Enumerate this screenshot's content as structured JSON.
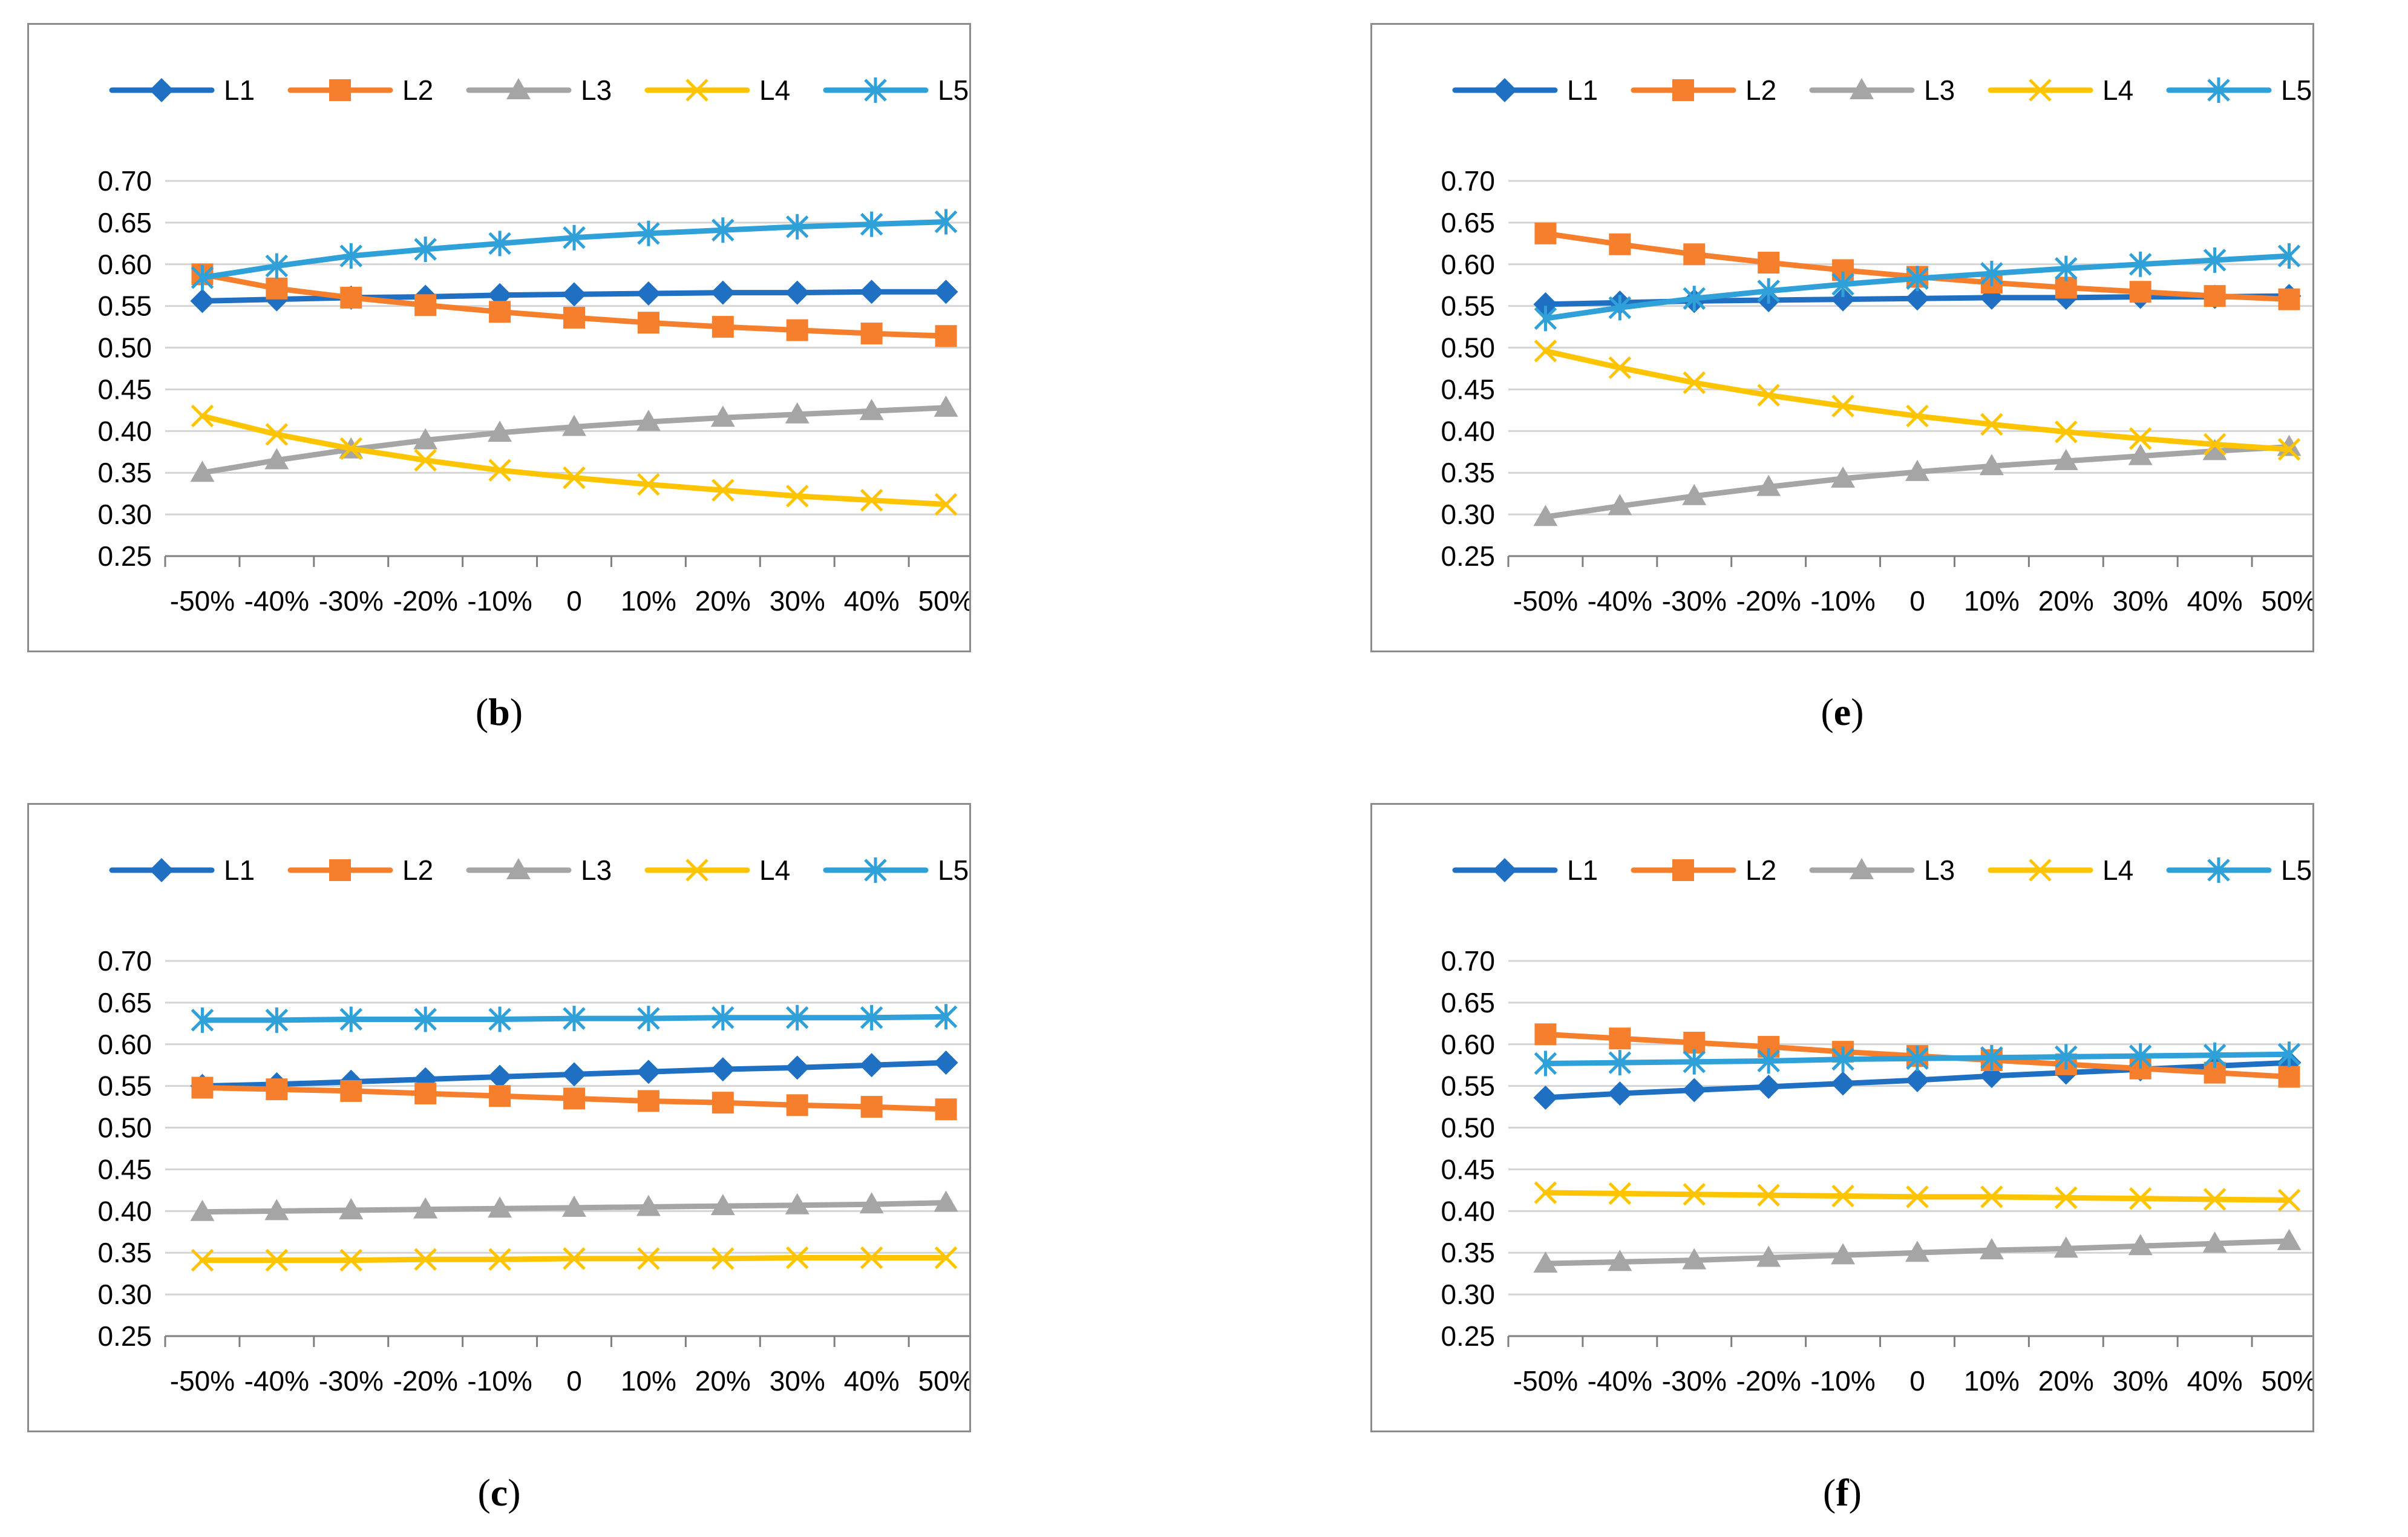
{
  "colors": {
    "L1": "#1f6fc2",
    "L2": "#f57f2c",
    "L3": "#a5a5a5",
    "L4": "#ffc400",
    "L5": "#2fa0d8",
    "grid": "#d4d4d4",
    "axis": "#7f7f7f"
  },
  "chart_data": [
    {
      "id": "b",
      "type": "line",
      "caption": "b",
      "categories": [
        "-50%",
        "-40%",
        "-30%",
        "-20%",
        "-10%",
        "0",
        "10%",
        "20%",
        "30%",
        "40%",
        "50%"
      ],
      "ylim": [
        0.25,
        0.7
      ],
      "yticks": [
        "0.70",
        "0.65",
        "0.60",
        "0.55",
        "0.50",
        "0.45",
        "0.40",
        "0.35",
        "0.30",
        "0.25"
      ],
      "legend": "top",
      "series": [
        {
          "name": "L1",
          "marker": "diamond",
          "values": [
            0.556,
            0.558,
            0.56,
            0.561,
            0.563,
            0.564,
            0.565,
            0.566,
            0.566,
            0.567,
            0.567
          ]
        },
        {
          "name": "L2",
          "marker": "square",
          "values": [
            0.588,
            0.571,
            0.56,
            0.551,
            0.543,
            0.536,
            0.53,
            0.525,
            0.521,
            0.517,
            0.514
          ]
        },
        {
          "name": "L3",
          "marker": "triangle",
          "values": [
            0.35,
            0.365,
            0.378,
            0.389,
            0.398,
            0.405,
            0.411,
            0.416,
            0.42,
            0.424,
            0.428
          ]
        },
        {
          "name": "L4",
          "marker": "x",
          "values": [
            0.418,
            0.396,
            0.379,
            0.365,
            0.353,
            0.344,
            0.336,
            0.329,
            0.322,
            0.317,
            0.312
          ]
        },
        {
          "name": "L5",
          "marker": "star",
          "values": [
            0.584,
            0.598,
            0.61,
            0.618,
            0.625,
            0.632,
            0.637,
            0.641,
            0.645,
            0.648,
            0.651
          ]
        }
      ]
    },
    {
      "id": "e",
      "type": "line",
      "caption": "e",
      "categories": [
        "-50%",
        "-40%",
        "-30%",
        "-20%",
        "-10%",
        "0",
        "10%",
        "20%",
        "30%",
        "40%",
        "50%"
      ],
      "ylim": [
        0.25,
        0.7
      ],
      "yticks": [
        "0.70",
        "0.65",
        "0.60",
        "0.55",
        "0.50",
        "0.45",
        "0.40",
        "0.35",
        "0.30",
        "0.25"
      ],
      "legend": "top",
      "series": [
        {
          "name": "L1",
          "marker": "diamond",
          "values": [
            0.552,
            0.554,
            0.556,
            0.557,
            0.558,
            0.559,
            0.56,
            0.56,
            0.561,
            0.561,
            0.562
          ]
        },
        {
          "name": "L2",
          "marker": "square",
          "values": [
            0.637,
            0.624,
            0.612,
            0.602,
            0.593,
            0.585,
            0.578,
            0.572,
            0.567,
            0.562,
            0.558
          ]
        },
        {
          "name": "L3",
          "marker": "triangle",
          "values": [
            0.297,
            0.31,
            0.322,
            0.333,
            0.343,
            0.351,
            0.358,
            0.364,
            0.37,
            0.376,
            0.381
          ]
        },
        {
          "name": "L4",
          "marker": "x",
          "values": [
            0.496,
            0.476,
            0.458,
            0.443,
            0.43,
            0.418,
            0.408,
            0.399,
            0.391,
            0.384,
            0.378
          ]
        },
        {
          "name": "L5",
          "marker": "star",
          "values": [
            0.535,
            0.548,
            0.559,
            0.568,
            0.576,
            0.583,
            0.589,
            0.595,
            0.6,
            0.605,
            0.61
          ]
        }
      ]
    },
    {
      "id": "c",
      "type": "line",
      "caption": "c",
      "categories": [
        "-50%",
        "-40%",
        "-30%",
        "-20%",
        "-10%",
        "0",
        "10%",
        "20%",
        "30%",
        "40%",
        "50%"
      ],
      "ylim": [
        0.25,
        0.7
      ],
      "yticks": [
        "0.70",
        "0.65",
        "0.60",
        "0.55",
        "0.50",
        "0.45",
        "0.40",
        "0.35",
        "0.30",
        "0.25"
      ],
      "legend": "top",
      "series": [
        {
          "name": "L1",
          "marker": "diamond",
          "values": [
            0.55,
            0.552,
            0.555,
            0.558,
            0.561,
            0.564,
            0.567,
            0.57,
            0.572,
            0.575,
            0.578
          ]
        },
        {
          "name": "L2",
          "marker": "square",
          "values": [
            0.548,
            0.546,
            0.544,
            0.541,
            0.538,
            0.535,
            0.532,
            0.53,
            0.527,
            0.525,
            0.522
          ]
        },
        {
          "name": "L3",
          "marker": "triangle",
          "values": [
            0.399,
            0.4,
            0.401,
            0.402,
            0.403,
            0.404,
            0.405,
            0.406,
            0.407,
            0.408,
            0.41
          ]
        },
        {
          "name": "L4",
          "marker": "x",
          "values": [
            0.341,
            0.341,
            0.341,
            0.342,
            0.342,
            0.343,
            0.343,
            0.343,
            0.344,
            0.344,
            0.344
          ]
        },
        {
          "name": "L5",
          "marker": "star",
          "values": [
            0.629,
            0.629,
            0.63,
            0.63,
            0.63,
            0.631,
            0.631,
            0.632,
            0.632,
            0.632,
            0.633
          ]
        }
      ]
    },
    {
      "id": "f",
      "type": "line",
      "caption": "f",
      "categories": [
        "-50%",
        "-40%",
        "-30%",
        "-20%",
        "-10%",
        "0",
        "10%",
        "20%",
        "30%",
        "40%",
        "50%"
      ],
      "ylim": [
        0.25,
        0.7
      ],
      "yticks": [
        "0.70",
        "0.65",
        "0.60",
        "0.55",
        "0.50",
        "0.45",
        "0.40",
        "0.35",
        "0.30",
        "0.25"
      ],
      "legend": "top",
      "series": [
        {
          "name": "L1",
          "marker": "diamond",
          "values": [
            0.536,
            0.541,
            0.545,
            0.549,
            0.553,
            0.557,
            0.562,
            0.566,
            0.57,
            0.574,
            0.578
          ]
        },
        {
          "name": "L2",
          "marker": "square",
          "values": [
            0.612,
            0.607,
            0.602,
            0.597,
            0.591,
            0.586,
            0.581,
            0.576,
            0.571,
            0.566,
            0.561
          ]
        },
        {
          "name": "L3",
          "marker": "triangle",
          "values": [
            0.337,
            0.339,
            0.341,
            0.344,
            0.347,
            0.35,
            0.353,
            0.355,
            0.358,
            0.361,
            0.364
          ]
        },
        {
          "name": "L4",
          "marker": "x",
          "values": [
            0.422,
            0.421,
            0.42,
            0.419,
            0.418,
            0.417,
            0.417,
            0.416,
            0.415,
            0.414,
            0.413
          ]
        },
        {
          "name": "L5",
          "marker": "star",
          "values": [
            0.577,
            0.578,
            0.579,
            0.58,
            0.582,
            0.583,
            0.584,
            0.585,
            0.586,
            0.587,
            0.588
          ]
        }
      ]
    }
  ]
}
